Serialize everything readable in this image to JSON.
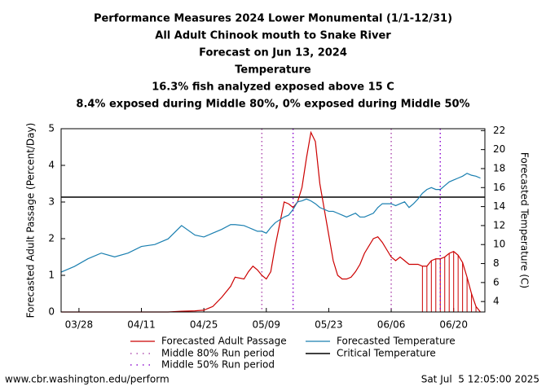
{
  "chart_data": {
    "type": "line",
    "title": [
      "Performance Measures 2024 Lower Monumental (1/1-12/31)",
      "All Adult Chinook mouth to Snake River",
      "Forecast on Jun 13, 2024",
      "Temperature",
      "16.3% fish analyzed exposed above 15 C",
      "8.4% exposed during Middle 80%, 0% exposed during Middle 50%"
    ],
    "ylabel": "Forecasted Adult Passage (Percent/Day)",
    "y2label": "Forecasted Temperature (C)",
    "x": [
      "03/24",
      "03/27",
      "03/30",
      "04/02",
      "04/05",
      "04/08",
      "04/11",
      "04/14",
      "04/17",
      "04/20",
      "04/23",
      "04/25",
      "04/27",
      "04/29",
      "05/01",
      "05/02",
      "05/04",
      "05/05",
      "05/06",
      "05/07",
      "05/08",
      "05/09",
      "05/10",
      "05/11",
      "05/13",
      "05/14",
      "05/15",
      "05/16",
      "05/17",
      "05/18",
      "05/19",
      "05/20",
      "05/21",
      "05/23",
      "05/24",
      "05/25",
      "05/26",
      "05/27",
      "05/28",
      "05/29",
      "05/30",
      "05/31",
      "06/02",
      "06/03",
      "06/04",
      "06/05",
      "06/06",
      "06/07",
      "06/08",
      "06/09",
      "06/10",
      "06/11",
      "06/12",
      "06/13",
      "06/14",
      "06/15",
      "06/16",
      "06/17",
      "06/18",
      "06/19",
      "06/20",
      "06/21",
      "06/22",
      "06/23",
      "06/24",
      "06/25",
      "06/26"
    ],
    "series": [
      {
        "name": "Forecasted Adult Passage",
        "color": "#cc0000",
        "axis": "y",
        "values": [
          0,
          0,
          0,
          0,
          0,
          0,
          0,
          0,
          0,
          0.02,
          0.03,
          0.05,
          0.15,
          0.4,
          0.7,
          0.95,
          0.9,
          1.1,
          1.25,
          1.15,
          1.0,
          0.9,
          1.1,
          1.8,
          3.0,
          2.95,
          2.85,
          3.0,
          3.4,
          4.2,
          4.9,
          4.65,
          3.5,
          2.1,
          1.4,
          1.0,
          0.9,
          0.9,
          0.95,
          1.1,
          1.3,
          1.6,
          2.0,
          2.05,
          1.9,
          1.7,
          1.5,
          1.4,
          1.5,
          1.4,
          1.3,
          1.3,
          1.3,
          1.25,
          1.25,
          1.4,
          1.45,
          1.45,
          1.5,
          1.6,
          1.65,
          1.55,
          1.35,
          0.95,
          0.5,
          0.15,
          0
        ]
      },
      {
        "name": "Forecasted Temperature",
        "color": "#1a7fb0",
        "axis": "y2",
        "values": [
          7.1,
          7.7,
          8.5,
          9.1,
          8.7,
          9.1,
          9.8,
          10.0,
          10.6,
          12.0,
          11.0,
          10.8,
          11.2,
          11.6,
          12.1,
          12.1,
          12.0,
          11.8,
          11.6,
          11.4,
          11.4,
          11.2,
          11.8,
          12.3,
          12.9,
          13.1,
          13.7,
          14.5,
          14.6,
          14.8,
          14.6,
          14.3,
          13.9,
          13.5,
          13.5,
          13.3,
          13.1,
          12.9,
          13.1,
          13.3,
          12.9,
          12.9,
          13.3,
          13.9,
          14.3,
          14.3,
          14.3,
          14.1,
          14.3,
          14.5,
          13.9,
          14.3,
          14.8,
          15.4,
          15.8,
          16.0,
          15.8,
          15.8,
          16.2,
          16.6,
          16.8,
          17.0,
          17.2,
          17.5,
          17.3,
          17.2,
          17.0
        ]
      }
    ],
    "reference": {
      "name": "Critical Temperature",
      "value": 15,
      "axis": "y2",
      "color": "#000000"
    },
    "periods": [
      {
        "name": "Middle 80% Run period",
        "color": "#b050b0",
        "dates": [
          "05/08",
          "06/06"
        ]
      },
      {
        "name": "Middle 50% Run period",
        "color": "#9010d0",
        "dates": [
          "05/15",
          "06/17"
        ]
      }
    ],
    "xlim": [
      "03/24",
      "06/27"
    ],
    "xticks": [
      "03/28",
      "04/11",
      "04/25",
      "05/09",
      "05/23",
      "06/06",
      "06/20"
    ],
    "ylim": [
      0,
      5.0
    ],
    "yticks": [
      0,
      1,
      2,
      3,
      4,
      5
    ],
    "y2lim": [
      2.9,
      22.2
    ],
    "y2ticks": [
      4,
      6,
      8,
      10,
      12,
      14,
      16,
      18,
      20,
      22
    ],
    "footer_left": "www.cbr.washington.edu/perform",
    "footer_right": "Sat Jul  5 12:05:00 2025"
  }
}
